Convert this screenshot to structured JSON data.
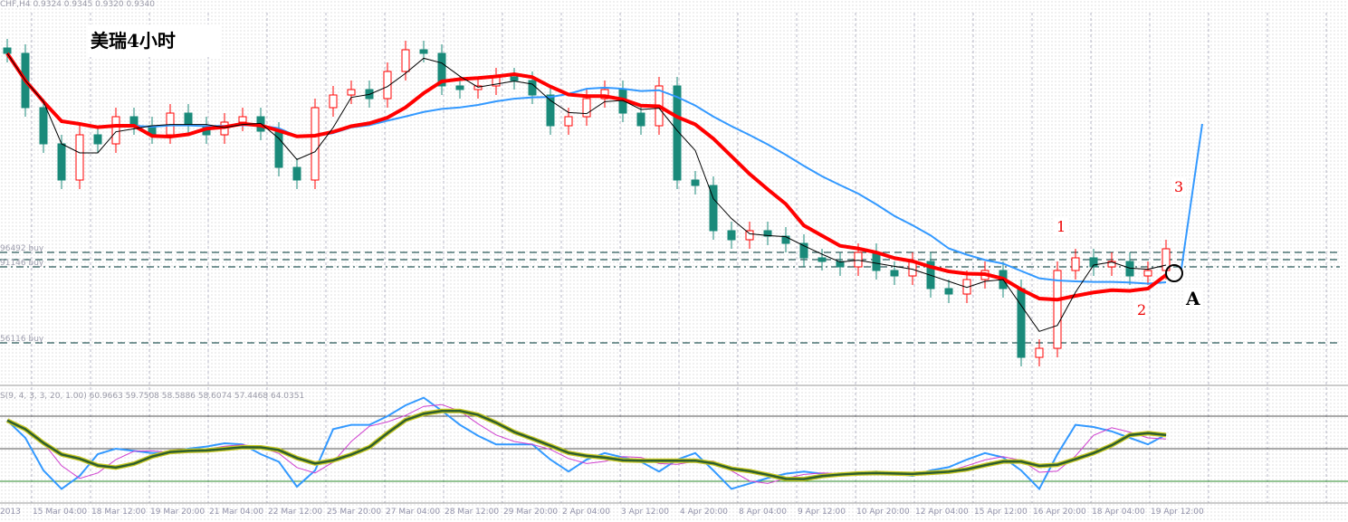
{
  "header": "CHF,H4  0.9324 0.9345 0.9320 0.9340",
  "title": "美瑞4小时",
  "levels": [
    {
      "label": "96492 buy",
      "price": 0.9338,
      "style": "dash"
    },
    {
      "label": "",
      "price": 0.9334,
      "style": "dash"
    },
    {
      "label": "91146 buy",
      "price": 0.933,
      "style": "dashdot"
    },
    {
      "label": "56116 buy",
      "price": 0.9288,
      "style": "dash"
    }
  ],
  "annotations": {
    "one": "1",
    "two": "2",
    "three": "3",
    "a": "A"
  },
  "colors": {
    "bull": "#ff0000",
    "bear": "#1a8a7a",
    "ma_fast": "#000000",
    "ma_mid": "#ff0000",
    "ma_slow": "#3399ff",
    "stoch_k": "#3399ff",
    "stoch_d": "#2e5e2e"
  },
  "chart_data": {
    "type": "line",
    "title": "CHF,H4",
    "ylim": [
      0.9265,
      0.9478
    ],
    "closes": [
      0.9448,
      0.9418,
      0.9398,
      0.9378,
      0.9403,
      0.9398,
      0.9413,
      0.9408,
      0.9403,
      0.9415,
      0.9408,
      0.9403,
      0.941,
      0.9413,
      0.9405,
      0.9385,
      0.9378,
      0.9418,
      0.9425,
      0.9428,
      0.9423,
      0.9438,
      0.945,
      0.9448,
      0.943,
      0.9428,
      0.943,
      0.9435,
      0.9433,
      0.9425,
      0.9408,
      0.9413,
      0.9423,
      0.9428,
      0.9415,
      0.9408,
      0.943,
      0.9378,
      0.9375,
      0.935,
      0.9345,
      0.935,
      0.9347,
      0.9343,
      0.9335,
      0.9333,
      0.933,
      0.9338,
      0.9328,
      0.9325,
      0.9333,
      0.9318,
      0.9315,
      0.9323,
      0.9328,
      0.9318,
      0.928,
      0.9285,
      0.9328,
      0.9335,
      0.933,
      0.9333,
      0.9325,
      0.9328,
      0.934
    ],
    "ma_periods": {
      "fast": 3,
      "mid": 8,
      "slow": 16
    },
    "projection_end_price": 0.9409,
    "stochastic": {
      "label": "S(9, 4, 3, 3, 20, 1.00) 60.9663 59.7508 58.5886 58.6074 57.4468 64.0351",
      "levels": [
        80,
        50,
        20
      ],
      "ylim": [
        0,
        100
      ],
      "k": [
        76,
        60,
        30,
        13,
        25,
        45,
        50,
        48,
        46,
        46,
        50,
        52,
        55,
        54,
        45,
        38,
        15,
        30,
        68,
        72,
        72,
        80,
        90,
        97,
        85,
        72,
        62,
        54,
        54,
        54,
        40,
        29,
        40,
        46,
        42,
        38,
        29,
        40,
        46,
        30,
        13,
        18,
        23,
        27,
        29,
        27,
        25,
        28,
        29,
        27,
        25,
        30,
        33,
        40,
        46,
        42,
        30,
        13,
        45,
        72,
        70,
        66,
        60,
        54,
        63
      ]
    },
    "x_tick_labels": [
      "2013",
      "15 Mar 04:00",
      "18 Mar 12:00",
      "19 Mar 20:00",
      "21 Mar 04:00",
      "22 Mar 12:00",
      "25 Mar 20:00",
      "27 Mar 04:00",
      "28 Mar 12:00",
      "29 Mar 20:00",
      "2 Apr 04:00",
      "3 Apr 12:00",
      "4 Apr 20:00",
      "8 Apr 04:00",
      "9 Apr 12:00",
      "10 Apr 20:00",
      "12 Apr 04:00",
      "15 Apr 12:00",
      "16 Apr 20:00",
      "18 Apr 04:00",
      "19 Apr 12:00"
    ]
  }
}
